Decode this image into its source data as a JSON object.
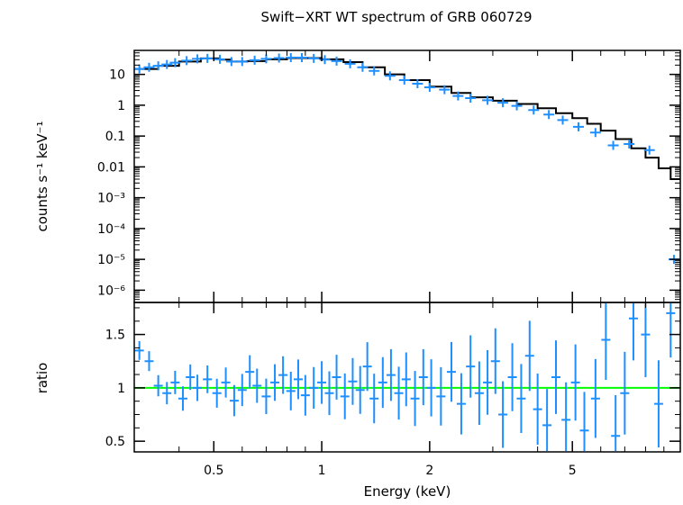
{
  "chart_data": {
    "type": "scatter",
    "title": "Swift−XRT WT spectrum of GRB 060729",
    "xlabel": "Energy (keV)",
    "xscale": "log",
    "xlim": [
      0.3,
      10
    ],
    "x_ticks": [
      {
        "value": 0.5,
        "label": "0.5"
      },
      {
        "value": 1,
        "label": "1"
      },
      {
        "value": 2,
        "label": "2"
      },
      {
        "value": 5,
        "label": "5"
      }
    ],
    "panels": [
      {
        "id": "spectrum",
        "ylabel": "counts s⁻¹ keV⁻¹",
        "yscale": "log",
        "ylim": [
          4e-07,
          60
        ],
        "y_ticks": [
          {
            "value": 10,
            "label": "10"
          },
          {
            "value": 1,
            "label": "1"
          },
          {
            "value": 0.1,
            "label": "0.1"
          },
          {
            "value": 0.01,
            "label": "0.01"
          },
          {
            "value": 0.001,
            "label": "10⁻³"
          },
          {
            "value": 0.0001,
            "label": "10⁻⁴"
          },
          {
            "value": 1e-05,
            "label": "10⁻⁵"
          },
          {
            "value": 1e-06,
            "label": "10⁻⁶"
          }
        ],
        "series": [
          {
            "kind": "data",
            "color": "#1e8fff",
            "points": [
              {
                "x": 0.31,
                "y": 15
              },
              {
                "x": 0.33,
                "y": 17
              },
              {
                "x": 0.35,
                "y": 19
              },
              {
                "x": 0.37,
                "y": 21
              },
              {
                "x": 0.39,
                "y": 24
              },
              {
                "x": 0.42,
                "y": 28
              },
              {
                "x": 0.45,
                "y": 32
              },
              {
                "x": 0.48,
                "y": 33
              },
              {
                "x": 0.52,
                "y": 31
              },
              {
                "x": 0.56,
                "y": 26
              },
              {
                "x": 0.6,
                "y": 26
              },
              {
                "x": 0.65,
                "y": 29
              },
              {
                "x": 0.7,
                "y": 32
              },
              {
                "x": 0.76,
                "y": 34
              },
              {
                "x": 0.82,
                "y": 35
              },
              {
                "x": 0.88,
                "y": 35
              },
              {
                "x": 0.95,
                "y": 33
              },
              {
                "x": 1.02,
                "y": 30
              },
              {
                "x": 1.1,
                "y": 27
              },
              {
                "x": 1.2,
                "y": 22
              },
              {
                "x": 1.3,
                "y": 17
              },
              {
                "x": 1.4,
                "y": 13
              },
              {
                "x": 1.55,
                "y": 9
              },
              {
                "x": 1.7,
                "y": 6.5
              },
              {
                "x": 1.85,
                "y": 5
              },
              {
                "x": 2.0,
                "y": 3.8
              },
              {
                "x": 2.2,
                "y": 3.2
              },
              {
                "x": 2.4,
                "y": 2.0
              },
              {
                "x": 2.6,
                "y": 1.7
              },
              {
                "x": 2.9,
                "y": 1.45
              },
              {
                "x": 3.2,
                "y": 1.2
              },
              {
                "x": 3.5,
                "y": 0.95
              },
              {
                "x": 3.9,
                "y": 0.7
              },
              {
                "x": 4.3,
                "y": 0.5
              },
              {
                "x": 4.7,
                "y": 0.33
              },
              {
                "x": 5.2,
                "y": 0.2
              },
              {
                "x": 5.8,
                "y": 0.13
              },
              {
                "x": 6.5,
                "y": 0.05
              },
              {
                "x": 7.2,
                "y": 0.055
              },
              {
                "x": 8.2,
                "y": 0.035
              },
              {
                "x": 9.6,
                "y": 1e-05
              }
            ]
          },
          {
            "kind": "model",
            "color": "#000000",
            "steps": [
              {
                "x": 0.3,
                "y": 15
              },
              {
                "x": 0.35,
                "y": 19
              },
              {
                "x": 0.4,
                "y": 26
              },
              {
                "x": 0.46,
                "y": 33
              },
              {
                "x": 0.52,
                "y": 30
              },
              {
                "x": 0.56,
                "y": 26
              },
              {
                "x": 0.62,
                "y": 27
              },
              {
                "x": 0.7,
                "y": 31
              },
              {
                "x": 0.8,
                "y": 34
              },
              {
                "x": 0.9,
                "y": 34
              },
              {
                "x": 1.0,
                "y": 31
              },
              {
                "x": 1.15,
                "y": 25
              },
              {
                "x": 1.3,
                "y": 17
              },
              {
                "x": 1.5,
                "y": 10
              },
              {
                "x": 1.7,
                "y": 6.5
              },
              {
                "x": 2.0,
                "y": 4.0
              },
              {
                "x": 2.3,
                "y": 2.5
              },
              {
                "x": 2.6,
                "y": 1.8
              },
              {
                "x": 3.0,
                "y": 1.4
              },
              {
                "x": 3.5,
                "y": 1.1
              },
              {
                "x": 4.0,
                "y": 0.8
              },
              {
                "x": 4.5,
                "y": 0.55
              },
              {
                "x": 5.0,
                "y": 0.38
              },
              {
                "x": 5.5,
                "y": 0.25
              },
              {
                "x": 6.0,
                "y": 0.15
              },
              {
                "x": 6.6,
                "y": 0.08
              },
              {
                "x": 7.3,
                "y": 0.04
              },
              {
                "x": 8.0,
                "y": 0.02
              },
              {
                "x": 8.7,
                "y": 0.009
              },
              {
                "x": 9.4,
                "y": 0.004
              },
              {
                "x": 10.0,
                "y": 0.004
              }
            ]
          }
        ]
      },
      {
        "id": "ratio",
        "ylabel": "ratio",
        "yscale": "linear",
        "ylim": [
          0.4,
          1.8
        ],
        "y_ticks": [
          {
            "value": 0.5,
            "label": "0.5"
          },
          {
            "value": 1,
            "label": "1"
          },
          {
            "value": 1.5,
            "label": "1.5"
          }
        ],
        "reference_line": {
          "y": 1,
          "color": "#00ff00"
        },
        "series": [
          {
            "kind": "data",
            "color": "#1e8fff",
            "points": [
              {
                "x": 0.31,
                "y": 1.35
              },
              {
                "x": 0.33,
                "y": 1.25
              },
              {
                "x": 0.35,
                "y": 1.02
              },
              {
                "x": 0.37,
                "y": 0.95
              },
              {
                "x": 0.39,
                "y": 1.05
              },
              {
                "x": 0.41,
                "y": 0.9
              },
              {
                "x": 0.43,
                "y": 1.1
              },
              {
                "x": 0.45,
                "y": 1.0
              },
              {
                "x": 0.48,
                "y": 1.08
              },
              {
                "x": 0.51,
                "y": 0.95
              },
              {
                "x": 0.54,
                "y": 1.05
              },
              {
                "x": 0.57,
                "y": 0.88
              },
              {
                "x": 0.6,
                "y": 0.98
              },
              {
                "x": 0.63,
                "y": 1.15
              },
              {
                "x": 0.66,
                "y": 1.02
              },
              {
                "x": 0.7,
                "y": 0.92
              },
              {
                "x": 0.74,
                "y": 1.05
              },
              {
                "x": 0.78,
                "y": 1.12
              },
              {
                "x": 0.82,
                "y": 0.97
              },
              {
                "x": 0.86,
                "y": 1.08
              },
              {
                "x": 0.9,
                "y": 0.93
              },
              {
                "x": 0.95,
                "y": 1.0
              },
              {
                "x": 1.0,
                "y": 1.05
              },
              {
                "x": 1.05,
                "y": 0.95
              },
              {
                "x": 1.1,
                "y": 1.1
              },
              {
                "x": 1.16,
                "y": 0.92
              },
              {
                "x": 1.22,
                "y": 1.06
              },
              {
                "x": 1.28,
                "y": 0.98
              },
              {
                "x": 1.34,
                "y": 1.2
              },
              {
                "x": 1.4,
                "y": 0.9
              },
              {
                "x": 1.48,
                "y": 1.05
              },
              {
                "x": 1.56,
                "y": 1.12
              },
              {
                "x": 1.64,
                "y": 0.95
              },
              {
                "x": 1.72,
                "y": 1.08
              },
              {
                "x": 1.82,
                "y": 0.9
              },
              {
                "x": 1.92,
                "y": 1.1
              },
              {
                "x": 2.02,
                "y": 1.0
              },
              {
                "x": 2.15,
                "y": 0.92
              },
              {
                "x": 2.3,
                "y": 1.15
              },
              {
                "x": 2.45,
                "y": 0.85
              },
              {
                "x": 2.6,
                "y": 1.2
              },
              {
                "x": 2.75,
                "y": 0.95
              },
              {
                "x": 2.9,
                "y": 1.05
              },
              {
                "x": 3.05,
                "y": 1.25
              },
              {
                "x": 3.2,
                "y": 0.75
              },
              {
                "x": 3.4,
                "y": 1.1
              },
              {
                "x": 3.6,
                "y": 0.9
              },
              {
                "x": 3.8,
                "y": 1.3
              },
              {
                "x": 4.0,
                "y": 0.8
              },
              {
                "x": 4.25,
                "y": 0.65
              },
              {
                "x": 4.5,
                "y": 1.1
              },
              {
                "x": 4.8,
                "y": 0.7
              },
              {
                "x": 5.1,
                "y": 1.05
              },
              {
                "x": 5.4,
                "y": 0.6
              },
              {
                "x": 5.8,
                "y": 0.9
              },
              {
                "x": 6.2,
                "y": 1.45
              },
              {
                "x": 6.6,
                "y": 0.55
              },
              {
                "x": 7.0,
                "y": 0.95
              },
              {
                "x": 7.4,
                "y": 1.65
              },
              {
                "x": 8.0,
                "y": 1.5
              },
              {
                "x": 8.7,
                "y": 0.85
              },
              {
                "x": 9.4,
                "y": 1.7
              }
            ]
          }
        ]
      }
    ]
  }
}
